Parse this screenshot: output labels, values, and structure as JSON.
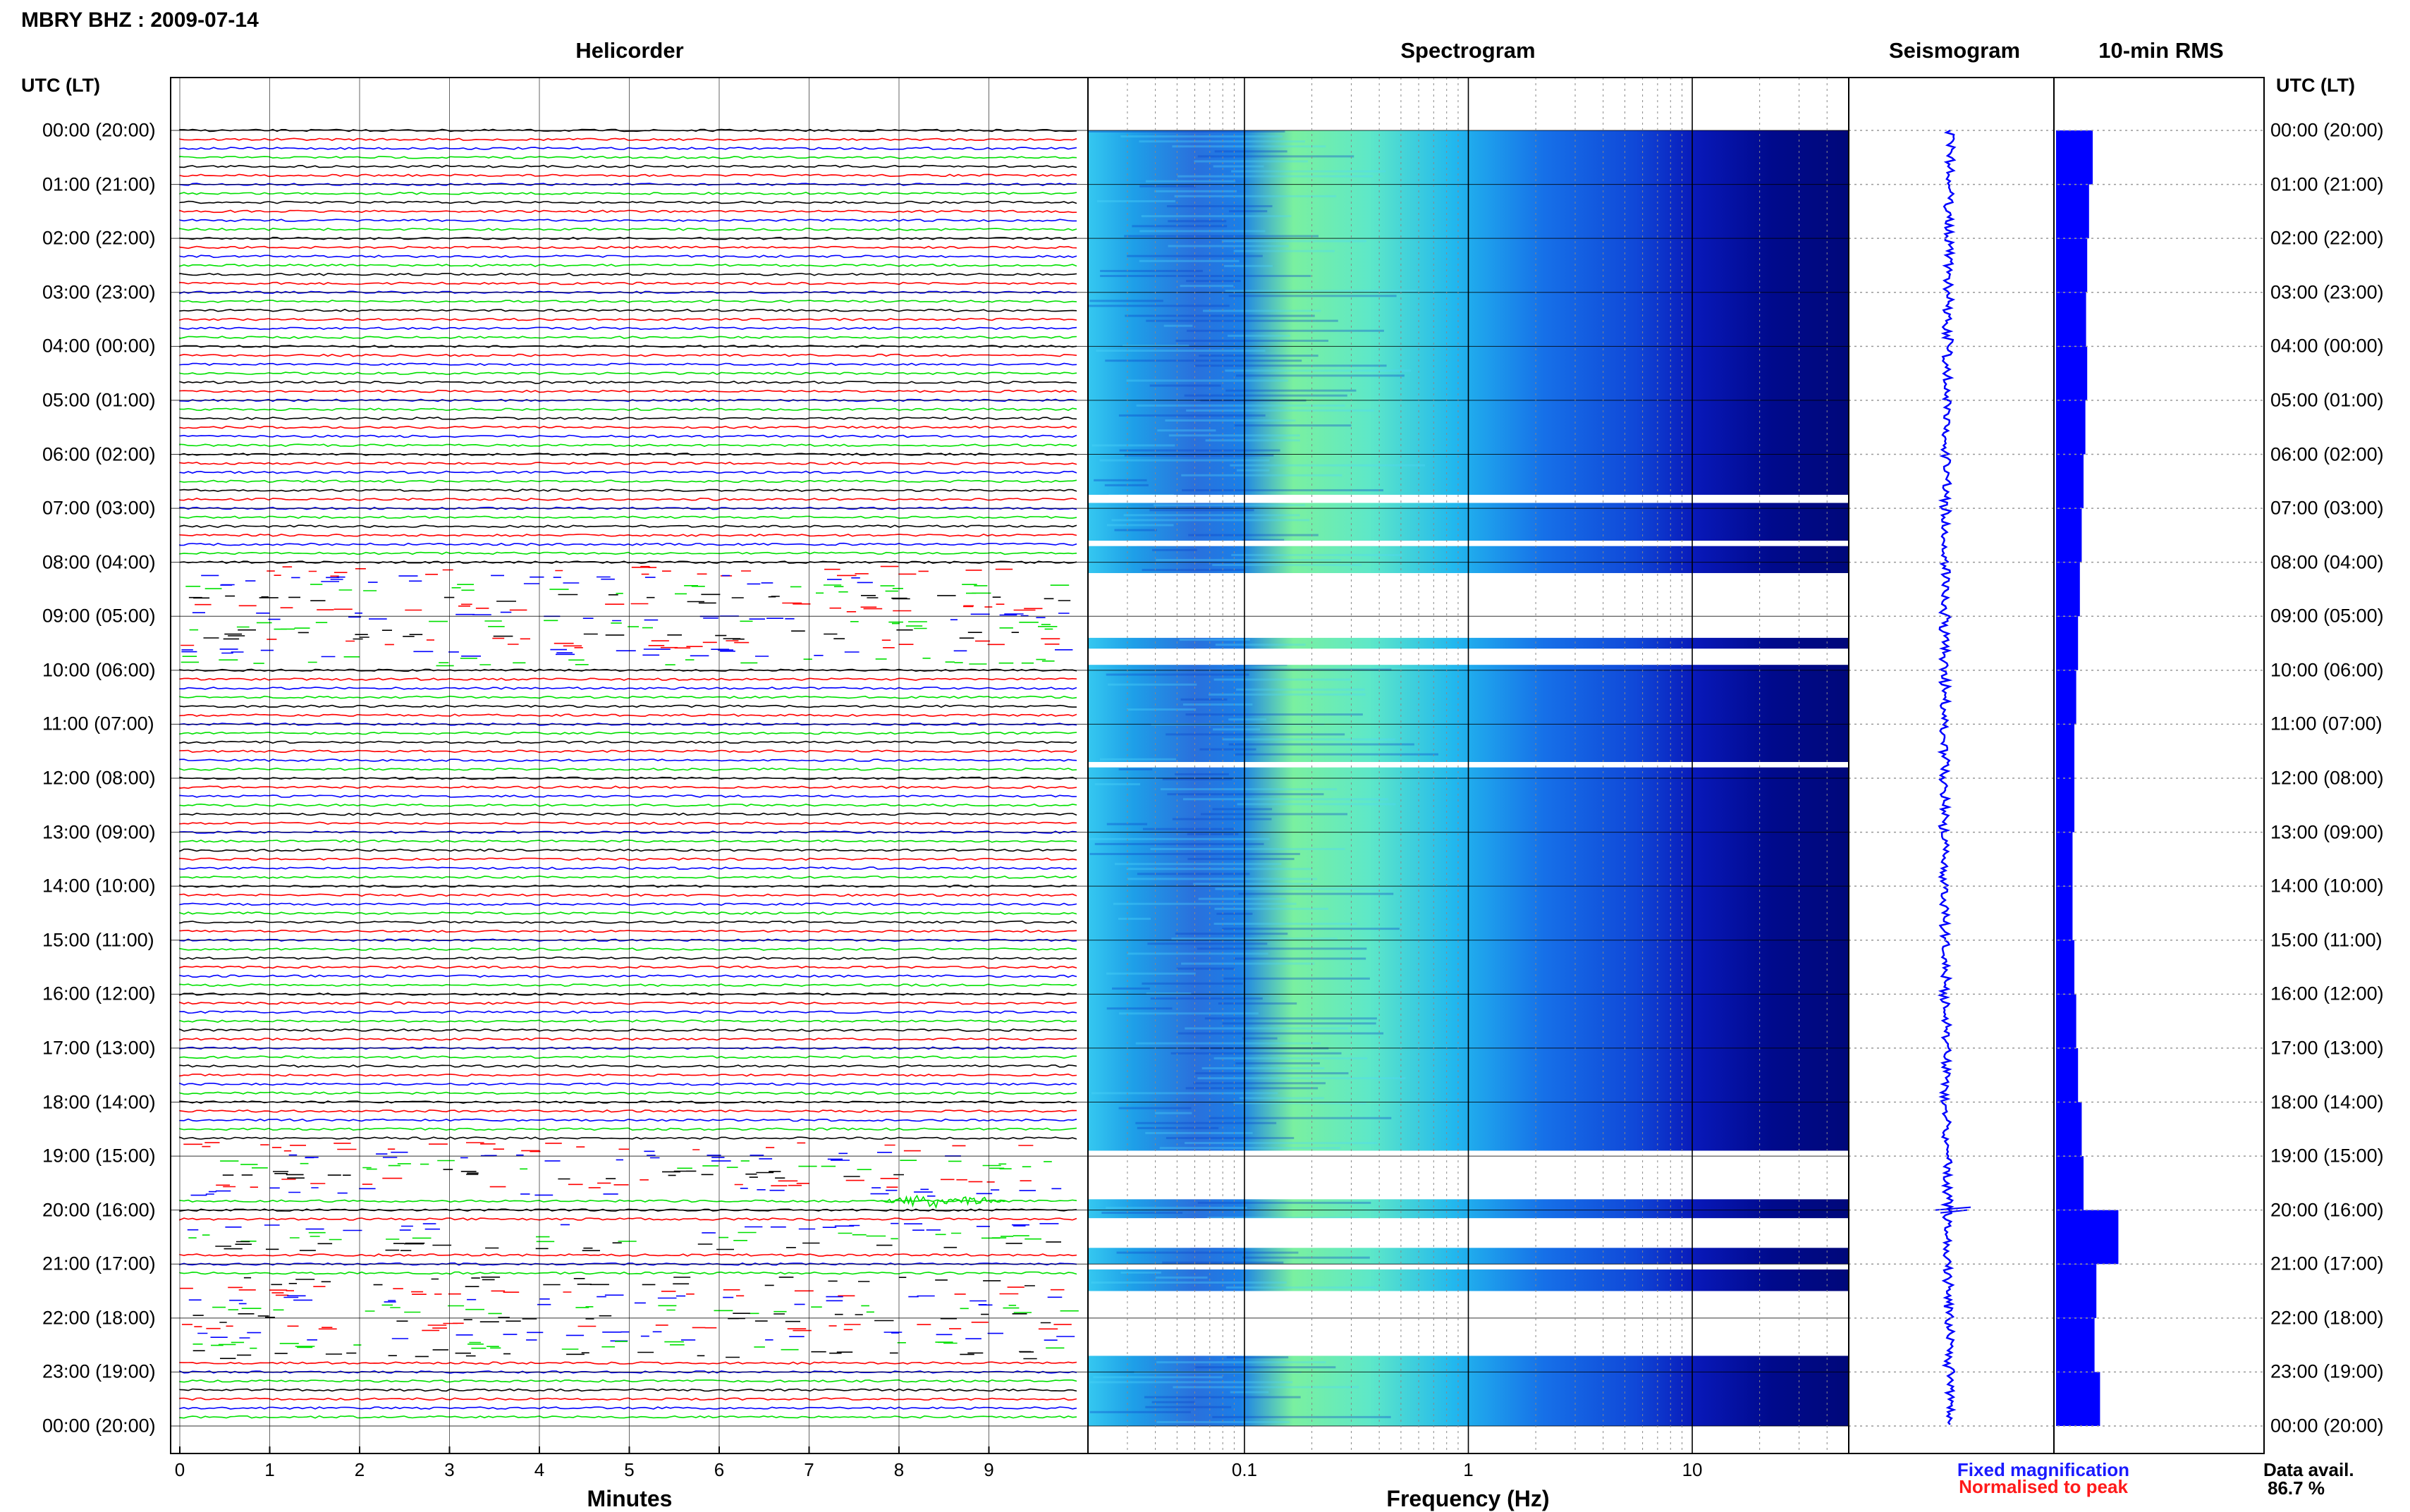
{
  "page_title": "MBRY BHZ : 2009-07-14",
  "panels": {
    "helicorder": "Helicorder",
    "spectrogram": "Spectrogram",
    "seismogram": "Seismogram",
    "rms": "10-min RMS"
  },
  "axis_titles": {
    "minutes": "Minutes",
    "frequency": "Frequency (Hz)"
  },
  "time_header": "UTC (LT)",
  "time_labels": [
    "00:00 (20:00)",
    "01:00 (21:00)",
    "02:00 (22:00)",
    "03:00 (23:00)",
    "04:00 (00:00)",
    "05:00 (01:00)",
    "06:00 (02:00)",
    "07:00 (03:00)",
    "08:00 (04:00)",
    "09:00 (05:00)",
    "10:00 (06:00)",
    "11:00 (07:00)",
    "12:00 (08:00)",
    "13:00 (09:00)",
    "14:00 (10:00)",
    "15:00 (11:00)",
    "16:00 (12:00)",
    "17:00 (13:00)",
    "18:00 (14:00)",
    "19:00 (15:00)",
    "20:00 (16:00)",
    "21:00 (17:00)",
    "22:00 (18:00)",
    "23:00 (19:00)",
    "00:00 (20:00)"
  ],
  "legend": {
    "fixed": "Fixed magnification",
    "normalised": "Normalised to peak",
    "fixed_color": "#1a1aff",
    "normalised_color": "#ff1a1a",
    "data_avail_label": "Data avail.",
    "data_avail_value": "86.7 %"
  },
  "chart_data": [
    {
      "type": "line",
      "panel": "Helicorder",
      "xlabel": "Minutes",
      "xlim": [
        0,
        10
      ],
      "x_ticks": [
        "0",
        "1",
        "2",
        "3",
        "4",
        "5",
        "6",
        "7",
        "8",
        "9"
      ],
      "y": "time of day, 10-minute trace rows",
      "trace_colors": [
        "#000000",
        "#ff0000",
        "#0000ff",
        "#00e000"
      ],
      "gaps_hours": [
        [
          8.1,
          9.9
        ],
        [
          18.7,
          19.7
        ],
        [
          20.2,
          20.7
        ],
        [
          21.3,
          22.7
        ]
      ],
      "notable_events": [
        {
          "hour": 19.83,
          "minute_start": 7.8,
          "minute_end": 9.2
        }
      ]
    },
    {
      "type": "heatmap",
      "panel": "Spectrogram",
      "xlabel": "Frequency (Hz)",
      "x_scale": "log",
      "xlim": [
        0.02,
        50
      ],
      "x_ticks": [
        "0.1",
        "1",
        "10"
      ],
      "colormap": [
        "#00007f",
        "#0000ff",
        "#0080ff",
        "#00ffff",
        "#80ff80"
      ],
      "peak_band_hz": [
        0.2,
        0.5
      ],
      "gaps_hours": [
        [
          6.75,
          6.9
        ],
        [
          7.6,
          7.7
        ],
        [
          8.2,
          9.4
        ],
        [
          9.6,
          9.9
        ],
        [
          11.7,
          11.8
        ],
        [
          18.9,
          19.8
        ],
        [
          20.15,
          20.7
        ],
        [
          21.0,
          21.1
        ],
        [
          21.5,
          22.7
        ]
      ]
    },
    {
      "type": "line",
      "panel": "Seismogram",
      "y": "time of day",
      "color": "#0000ff",
      "notable_events_hours": [
        20.0
      ]
    },
    {
      "type": "bar",
      "panel": "10-min RMS",
      "orientation": "horizontal",
      "color": "#0000ff",
      "y": "time of day (hourly bins)",
      "hours": [
        0,
        1,
        2,
        3,
        4,
        5,
        6,
        7,
        8,
        9,
        10,
        11,
        12,
        13,
        14,
        15,
        16,
        17,
        18,
        19,
        20,
        21,
        22,
        23
      ],
      "values": [
        1.0,
        0.9,
        0.85,
        0.82,
        0.85,
        0.8,
        0.75,
        0.7,
        0.65,
        0.6,
        0.55,
        0.5,
        0.5,
        0.45,
        0.45,
        0.5,
        0.55,
        0.6,
        0.7,
        0.75,
        1.7,
        1.1,
        1.05,
        1.2
      ]
    }
  ]
}
